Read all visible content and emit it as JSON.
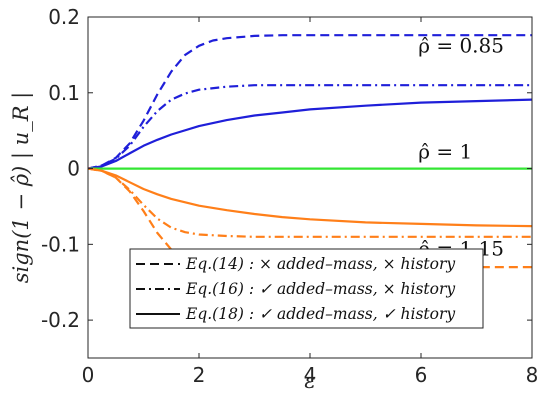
{
  "chart_data": {
    "type": "line",
    "xlabel": "ε",
    "ylabel": "sign(1 − ρ̂) | u_R |",
    "xlim": [
      0,
      8
    ],
    "ylim": [
      -0.25,
      0.2
    ],
    "x_ticks": [
      0,
      2,
      4,
      6,
      8
    ],
    "x_tick_labels": [
      "0",
      "2",
      "4",
      "6",
      "8"
    ],
    "y_ticks": [
      0.2,
      0.1,
      0,
      -0.1,
      -0.2
    ],
    "y_tick_labels": [
      "0.2",
      "0.1",
      "0",
      "-0.1",
      "-0.2"
    ],
    "grid": false,
    "legend_position": "bottom-center",
    "annotations": [
      {
        "text": "ρ̂ = 0.85",
        "x": 5.95,
        "y": 0.153
      },
      {
        "text": "ρ̂ = 1",
        "x": 5.95,
        "y": 0.013
      },
      {
        "text": "ρ̂ = 1.15",
        "x": 5.95,
        "y": -0.115
      }
    ],
    "legend": [
      {
        "label": "Eq.(14) : × added–mass, × history",
        "dash": "dashed"
      },
      {
        "label": "Eq.(16) : ✓ added–mass, × history",
        "dash": "dashdot"
      },
      {
        "label": "Eq.(18) : ✓ added–mass, ✓ history",
        "dash": "solid"
      }
    ],
    "colors": {
      "blue": "#1f1fd9",
      "green": "#33e633",
      "orange": "#ff7f19"
    },
    "series": [
      {
        "group": "ρ̂ = 0.85",
        "model": "Eq.(14)",
        "dash": "dashed",
        "color": "#1f1fd9",
        "x": [
          0,
          0.25,
          0.5,
          0.75,
          1,
          1.25,
          1.5,
          1.75,
          2,
          2.25,
          2.5,
          3,
          3.5,
          4,
          5,
          6,
          7,
          8
        ],
        "y": [
          0,
          0.004,
          0.014,
          0.033,
          0.063,
          0.098,
          0.128,
          0.15,
          0.162,
          0.169,
          0.172,
          0.175,
          0.176,
          0.176,
          0.176,
          0.176,
          0.176,
          0.176
        ]
      },
      {
        "group": "ρ̂ = 0.85",
        "model": "Eq.(16)",
        "dash": "dashdot",
        "color": "#1f1fd9",
        "x": [
          0,
          0.25,
          0.5,
          0.75,
          1,
          1.25,
          1.5,
          1.75,
          2,
          2.5,
          3,
          3.5,
          4,
          5,
          6,
          7,
          8
        ],
        "y": [
          0,
          0.004,
          0.013,
          0.03,
          0.055,
          0.076,
          0.091,
          0.099,
          0.104,
          0.108,
          0.11,
          0.11,
          0.11,
          0.11,
          0.11,
          0.11,
          0.11
        ]
      },
      {
        "group": "ρ̂ = 0.85",
        "model": "Eq.(18)",
        "dash": "solid",
        "color": "#1f1fd9",
        "x": [
          0,
          0.25,
          0.5,
          0.75,
          1,
          1.25,
          1.5,
          2,
          2.5,
          3,
          3.5,
          4,
          5,
          6,
          7,
          8
        ],
        "y": [
          0,
          0.003,
          0.01,
          0.02,
          0.03,
          0.038,
          0.045,
          0.056,
          0.064,
          0.07,
          0.074,
          0.078,
          0.083,
          0.087,
          0.089,
          0.091
        ]
      },
      {
        "group": "ρ̂ = 1",
        "model": "all",
        "dash": "solid",
        "color": "#33e633",
        "x": [
          0,
          8
        ],
        "y": [
          0,
          0
        ]
      },
      {
        "group": "ρ̂ = 1.15",
        "model": "Eq.(14)",
        "dash": "dashed",
        "color": "#ff7f19",
        "x": [
          0,
          0.25,
          0.5,
          0.75,
          1,
          1.25,
          1.5,
          1.75,
          2,
          2.25,
          2.5,
          3,
          3.5,
          4,
          5,
          6,
          7,
          8
        ],
        "y": [
          0,
          -0.003,
          -0.012,
          -0.03,
          -0.056,
          -0.085,
          -0.107,
          -0.119,
          -0.125,
          -0.128,
          -0.129,
          -0.13,
          -0.13,
          -0.13,
          -0.13,
          -0.13,
          -0.13,
          -0.13
        ]
      },
      {
        "group": "ρ̂ = 1.15",
        "model": "Eq.(16)",
        "dash": "dashdot",
        "color": "#ff7f19",
        "x": [
          0,
          0.25,
          0.5,
          0.75,
          1,
          1.25,
          1.5,
          1.75,
          2,
          2.5,
          3,
          3.5,
          4,
          5,
          6,
          7,
          8
        ],
        "y": [
          0,
          -0.003,
          -0.012,
          -0.028,
          -0.048,
          -0.066,
          -0.078,
          -0.084,
          -0.087,
          -0.089,
          -0.09,
          -0.09,
          -0.09,
          -0.09,
          -0.09,
          -0.09,
          -0.09
        ]
      },
      {
        "group": "ρ̂ = 1.15",
        "model": "Eq.(18)",
        "dash": "solid",
        "color": "#ff7f19",
        "x": [
          0,
          0.25,
          0.5,
          0.75,
          1,
          1.25,
          1.5,
          2,
          2.5,
          3,
          3.5,
          4,
          5,
          6,
          7,
          8
        ],
        "y": [
          0,
          -0.003,
          -0.009,
          -0.018,
          -0.027,
          -0.034,
          -0.04,
          -0.049,
          -0.055,
          -0.06,
          -0.064,
          -0.067,
          -0.071,
          -0.073,
          -0.075,
          -0.076
        ]
      }
    ]
  }
}
